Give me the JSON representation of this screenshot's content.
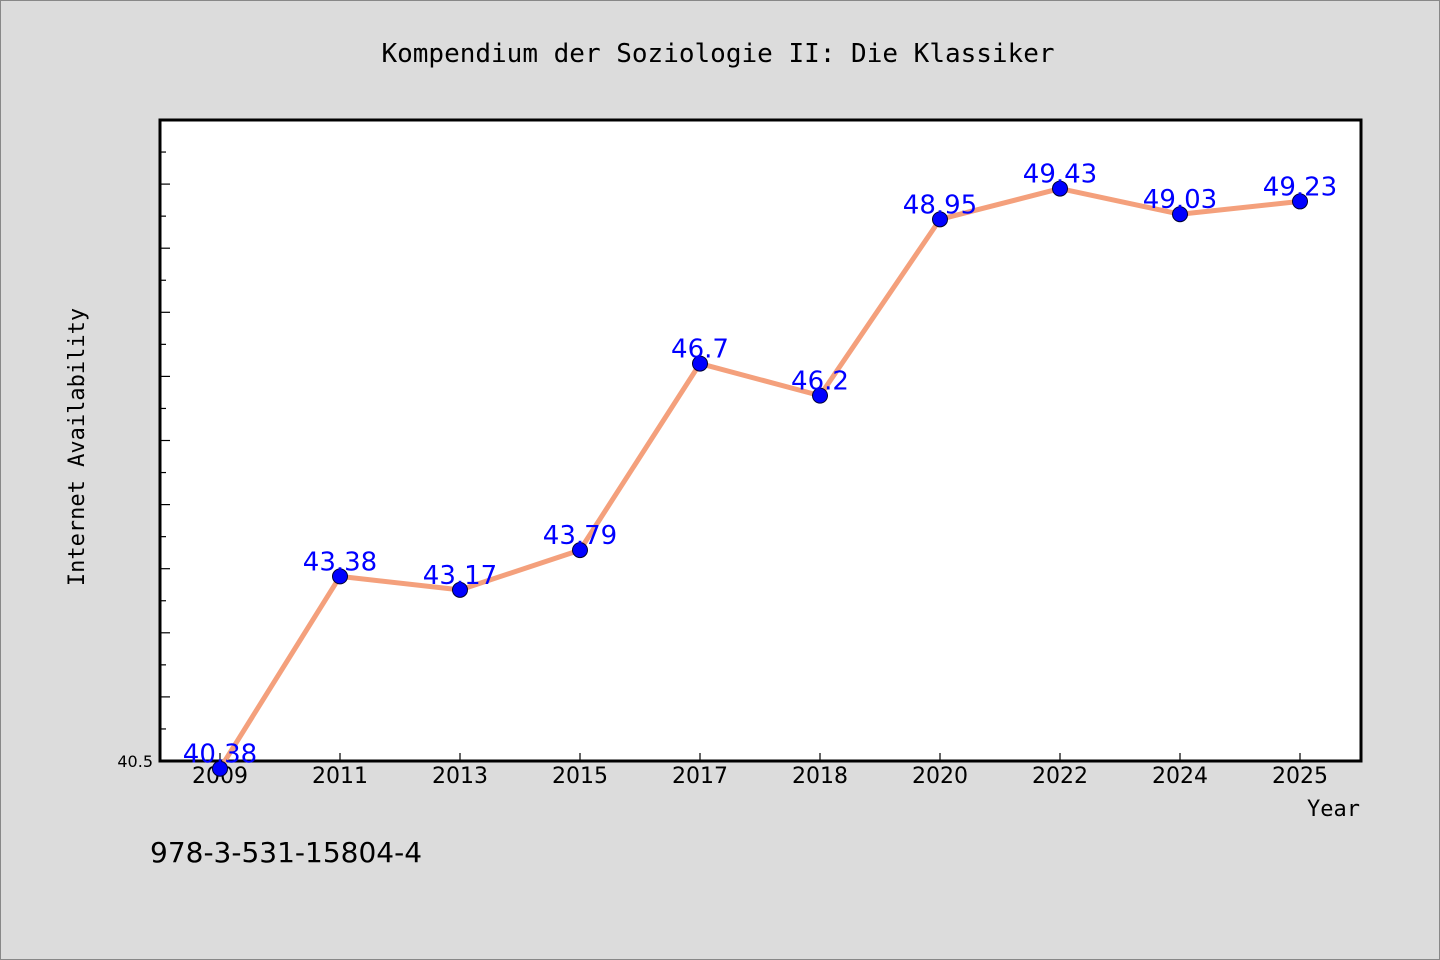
{
  "chart_data": {
    "type": "line",
    "title": "Kompendium der Soziologie II: Die Klassiker",
    "xlabel": "Year",
    "ylabel": "Internet Availability",
    "categories": [
      "2009",
      "2011",
      "2013",
      "2015",
      "2017",
      "2018",
      "2020",
      "2022",
      "2024",
      "2025"
    ],
    "series": [
      {
        "values": [
          40.38,
          43.38,
          43.17,
          43.79,
          46.7,
          46.2,
          48.95,
          49.43,
          49.03,
          49.23
        ]
      }
    ],
    "data_labels": [
      "40.38",
      "43.38",
      "43.17",
      "43.79",
      "46.7",
      "46.2",
      "48.95",
      "49.43",
      "49.03",
      "49.23"
    ],
    "ylim": [
      40.5,
      50.5
    ],
    "y_min_label": "40.5",
    "grid": false,
    "legend": "none",
    "line_color": "#f4a07c",
    "marker_color": "#0000ff",
    "label_color": "#0000ff"
  },
  "footer": {
    "isbn": "978-3-531-15804-4"
  }
}
